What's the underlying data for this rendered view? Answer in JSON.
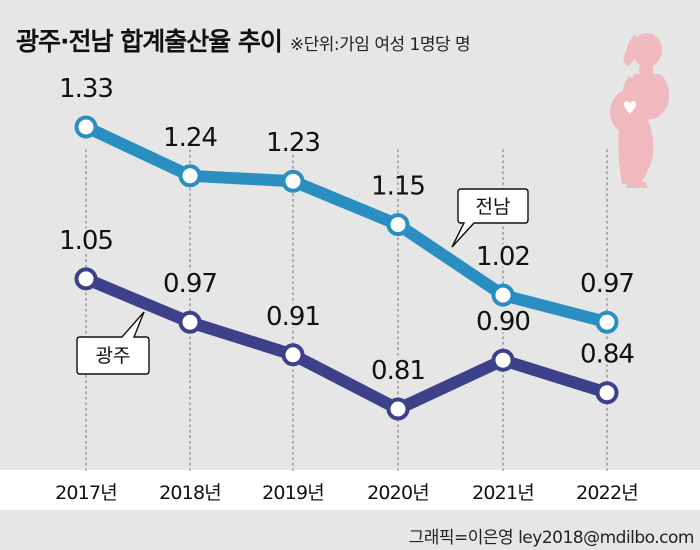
{
  "title": "광주·전남 합계출산율 추이",
  "unit_note": "※단위:가임 여성 1명당 명",
  "credit": "그래픽=이은영 ley2018@mdilbo.com",
  "colors": {
    "background": "#e6e6e6",
    "jeonnam": "#2a8fc0",
    "gwangju": "#3d4189",
    "figure": "#f0b9bd"
  },
  "chart_data": {
    "type": "line",
    "categories": [
      "2017년",
      "2018년",
      "2019년",
      "2020년",
      "2021년",
      "2022년"
    ],
    "series": [
      {
        "name": "전남",
        "values": [
          1.33,
          1.24,
          1.23,
          1.15,
          1.02,
          0.97
        ],
        "labels": [
          "1.33",
          "1.24",
          "1.23",
          "1.15",
          "1.02",
          "0.97"
        ]
      },
      {
        "name": "광주",
        "values": [
          1.05,
          0.97,
          0.91,
          0.81,
          0.9,
          0.84
        ],
        "labels": [
          "1.05",
          "0.97",
          "0.91",
          "0.81",
          "0.90",
          "0.84"
        ]
      }
    ],
    "title": "광주·전남 합계출산율 추이",
    "xlabel": "",
    "ylabel": "",
    "grid": "vertical dotted lines at each year",
    "legend": "callout labels next to each line"
  }
}
